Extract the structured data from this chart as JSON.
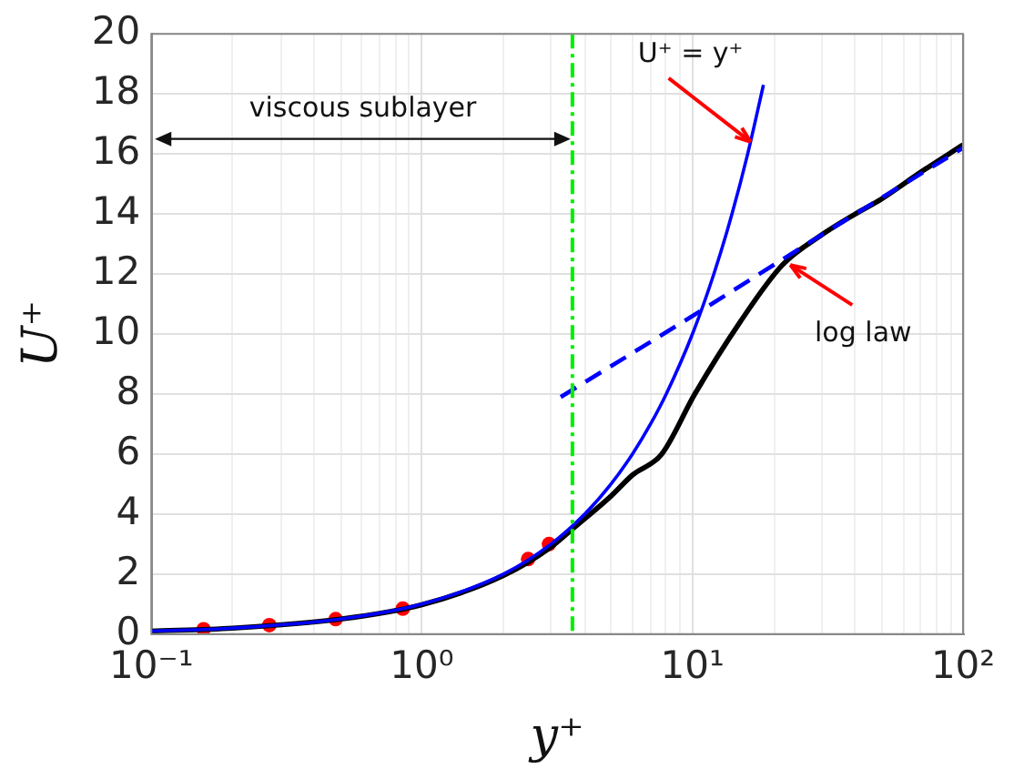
{
  "chart_data": {
    "type": "line",
    "xlabel": "y⁺",
    "ylabel": "U⁺",
    "log": "x",
    "grid": true,
    "legend": false,
    "xlim": [
      0.1,
      100
    ],
    "xticks": [
      {
        "value": 0.1,
        "label": "10⁻¹"
      },
      {
        "value": 1,
        "label": "10⁰"
      },
      {
        "value": 10,
        "label": "10¹"
      },
      {
        "value": 100,
        "label": "10²"
      }
    ],
    "ylim": [
      0,
      20
    ],
    "yticks": [
      0,
      2,
      4,
      6,
      8,
      10,
      12,
      14,
      16,
      18,
      20
    ],
    "series": [
      {
        "type": "line",
        "color": "#0000ff",
        "marker": "none",
        "line_style": "solid",
        "x": [
          0.1,
          0.2,
          0.5,
          1,
          2,
          3,
          4,
          5,
          6,
          7,
          8,
          10,
          12,
          14,
          16,
          18.3
        ],
        "values": [
          0.1,
          0.2,
          0.5,
          1,
          2,
          3,
          4,
          5,
          6,
          7,
          8,
          10,
          12,
          14,
          16,
          18.3
        ]
      },
      {
        "type": "line",
        "color": "#0000ff",
        "marker": "none",
        "line_style": "dashed",
        "x": [
          3.26,
          10,
          30,
          100
        ],
        "values": [
          7.9,
          10.6,
          13.3,
          16.2
        ]
      },
      {
        "type": "line",
        "color": "#000000",
        "marker": "none",
        "line_style": "solid",
        "x": [
          0.1,
          0.2,
          0.5,
          1,
          2,
          3,
          3.6,
          5,
          6,
          7.7,
          10.2,
          15,
          21.5,
          30,
          40,
          50,
          70,
          100
        ],
        "values": [
          0.1,
          0.2,
          0.5,
          0.98,
          1.95,
          2.9,
          3.5,
          4.6,
          5.3,
          6,
          8,
          10.4,
          12.3,
          13.3,
          14.0,
          14.5,
          15.4,
          16.3
        ]
      },
      {
        "type": "scatter",
        "color": "#ff0000",
        "marker": "circle",
        "x": [
          0.156,
          0.273,
          0.48,
          0.85,
          2.47,
          2.95
        ],
        "values": [
          0.16,
          0.3,
          0.5,
          0.85,
          2.5,
          3.0
        ]
      }
    ],
    "ref_lines": [
      {
        "axis": "x",
        "value": 3.6,
        "color": "#00ee00",
        "line_style": "dashed"
      }
    ],
    "annotations": [
      "viscous sublayer",
      {
        "text": "U⁺ = y⁺",
        "x": 16.4,
        "y": 16.4
      },
      {
        "text": "log law",
        "x": 23,
        "y": 12.3
      }
    ]
  }
}
